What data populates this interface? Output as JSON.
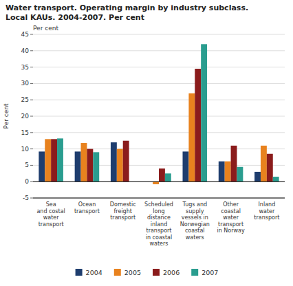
{
  "chart_data": {
    "type": "bar",
    "title": "Water transport. Operating margin by industry subclass.",
    "subtitle": "Local KAUs. 2004-2007. Per cent",
    "ylabel": "Per cent",
    "annotations": [
      "Per cent"
    ],
    "categories": [
      "Sea\nand costal\nwater\ntransport",
      "Ocean\ntransport",
      "Domestic\nfreight\ntransport",
      "Scheduled\nlong\ndistance\ninland\ntransport\nin coastal\nwaters",
      "Tugs and\nsupply\nvessels in\nNorwegian\ncoastal\nwaters",
      "Other\ncoastal\nwater\ntransport\nin Norway",
      "Inland\nwater\ntransport"
    ],
    "series": [
      {
        "name": "2004",
        "color": "#1e3d6e",
        "values": [
          9.2,
          9.2,
          12.0,
          0.0,
          9.2,
          6.2,
          3.0
        ]
      },
      {
        "name": "2005",
        "color": "#e8821e",
        "values": [
          13.0,
          11.8,
          10.0,
          -0.8,
          27.0,
          6.2,
          11.0
        ]
      },
      {
        "name": "2006",
        "color": "#8b1c1c",
        "values": [
          13.0,
          10.0,
          12.5,
          4.0,
          34.5,
          11.0,
          8.5
        ]
      },
      {
        "name": "2007",
        "color": "#2a9d8f",
        "values": [
          13.2,
          9.0,
          0.0,
          2.5,
          42.0,
          4.5,
          1.5
        ]
      }
    ],
    "ylim": [
      -5,
      45
    ],
    "yticks": [
      -5,
      0,
      5,
      10,
      15,
      20,
      25,
      30,
      35,
      40,
      45
    ],
    "grid": true,
    "legend": "bottom"
  }
}
